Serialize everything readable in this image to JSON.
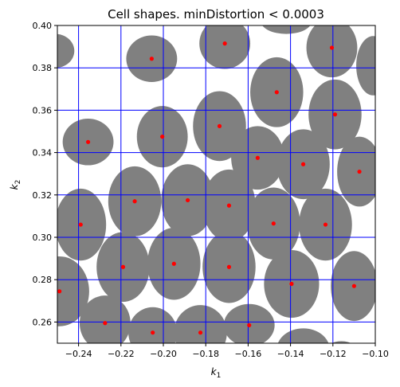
{
  "chart_data": {
    "type": "scatter",
    "title": "Cell shapes. minDistortion < 0.0003",
    "xlabel_main": "k",
    "xlabel_sub": "1",
    "ylabel_main": "k",
    "ylabel_sub": "2",
    "xlim": [
      -0.25,
      -0.1
    ],
    "ylim": [
      0.25,
      0.4
    ],
    "grid": true,
    "grid_color": "#0000ff",
    "cell_color": "#808080",
    "center_color": "#ff0000",
    "x_ticks": [
      -0.24,
      -0.22,
      -0.2,
      -0.18,
      -0.16,
      -0.14,
      -0.12,
      -0.1
    ],
    "x_tick_labels": [
      "−0.24",
      "−0.22",
      "−0.20",
      "−0.18",
      "−0.16",
      "−0.14",
      "−0.12",
      "−0.10"
    ],
    "y_ticks": [
      0.26,
      0.28,
      0.3,
      0.32,
      0.34,
      0.36,
      0.38,
      0.4
    ],
    "y_tick_labels": [
      "0.26",
      "0.28",
      "0.30",
      "0.32",
      "0.34",
      "0.36",
      "0.38",
      "0.40"
    ],
    "cells": [
      {
        "cx": -0.2055,
        "cy": 0.3843,
        "rx": 0.012,
        "ry": 0.011,
        "center": true
      },
      {
        "cx": -0.251,
        "cy": 0.388,
        "rx": 0.009,
        "ry": 0.008,
        "center": false
      },
      {
        "cx": -0.171,
        "cy": 0.3915,
        "rx": 0.012,
        "ry": 0.012,
        "center": true
      },
      {
        "cx": -0.142,
        "cy": 0.402,
        "rx": 0.012,
        "ry": 0.006,
        "center": false
      },
      {
        "cx": -0.1205,
        "cy": 0.3895,
        "rx": 0.012,
        "ry": 0.014,
        "center": true
      },
      {
        "cx": -0.101,
        "cy": 0.381,
        "rx": 0.008,
        "ry": 0.014,
        "center": false
      },
      {
        "cx": -0.2355,
        "cy": 0.345,
        "rx": 0.012,
        "ry": 0.011,
        "center": true
      },
      {
        "cx": -0.2005,
        "cy": 0.3475,
        "rx": 0.012,
        "ry": 0.0145,
        "center": true
      },
      {
        "cx": -0.1735,
        "cy": 0.3525,
        "rx": 0.0125,
        "ry": 0.0165,
        "center": true
      },
      {
        "cx": -0.1465,
        "cy": 0.3685,
        "rx": 0.0125,
        "ry": 0.0165,
        "center": true
      },
      {
        "cx": -0.119,
        "cy": 0.358,
        "rx": 0.0125,
        "ry": 0.0165,
        "center": true
      },
      {
        "cx": -0.1555,
        "cy": 0.3375,
        "rx": 0.0125,
        "ry": 0.015,
        "center": true
      },
      {
        "cx": -0.134,
        "cy": 0.3345,
        "rx": 0.0125,
        "ry": 0.0165,
        "center": true
      },
      {
        "cx": -0.1075,
        "cy": 0.331,
        "rx": 0.0105,
        "ry": 0.0165,
        "center": true
      },
      {
        "cx": -0.239,
        "cy": 0.306,
        "rx": 0.012,
        "ry": 0.017,
        "center": true
      },
      {
        "cx": -0.2135,
        "cy": 0.317,
        "rx": 0.0125,
        "ry": 0.0165,
        "center": true
      },
      {
        "cx": -0.1885,
        "cy": 0.3175,
        "rx": 0.0125,
        "ry": 0.017,
        "center": true
      },
      {
        "cx": -0.169,
        "cy": 0.315,
        "rx": 0.0125,
        "ry": 0.017,
        "center": true
      },
      {
        "cx": -0.148,
        "cy": 0.3065,
        "rx": 0.0125,
        "ry": 0.017,
        "center": true
      },
      {
        "cx": -0.1235,
        "cy": 0.306,
        "rx": 0.0125,
        "ry": 0.017,
        "center": true
      },
      {
        "cx": -0.219,
        "cy": 0.286,
        "rx": 0.0125,
        "ry": 0.0165,
        "center": true
      },
      {
        "cx": -0.195,
        "cy": 0.2875,
        "rx": 0.0125,
        "ry": 0.017,
        "center": true
      },
      {
        "cx": -0.169,
        "cy": 0.286,
        "rx": 0.0125,
        "ry": 0.017,
        "center": true
      },
      {
        "cx": -0.1395,
        "cy": 0.278,
        "rx": 0.013,
        "ry": 0.016,
        "center": true
      },
      {
        "cx": -0.11,
        "cy": 0.277,
        "rx": 0.011,
        "ry": 0.0165,
        "center": true
      },
      {
        "cx": -0.249,
        "cy": 0.2745,
        "rx": 0.014,
        "ry": 0.0165,
        "center": true
      },
      {
        "cx": -0.2275,
        "cy": 0.2595,
        "rx": 0.012,
        "ry": 0.013,
        "center": true
      },
      {
        "cx": -0.205,
        "cy": 0.255,
        "rx": 0.0115,
        "ry": 0.012,
        "center": true
      },
      {
        "cx": -0.1825,
        "cy": 0.255,
        "rx": 0.0125,
        "ry": 0.013,
        "center": true
      },
      {
        "cx": -0.1595,
        "cy": 0.2585,
        "rx": 0.012,
        "ry": 0.01,
        "center": true
      },
      {
        "cx": -0.134,
        "cy": 0.247,
        "rx": 0.0125,
        "ry": 0.01,
        "center": false
      },
      {
        "cx": -0.116,
        "cy": 0.245,
        "rx": 0.008,
        "ry": 0.006,
        "center": false
      }
    ]
  }
}
